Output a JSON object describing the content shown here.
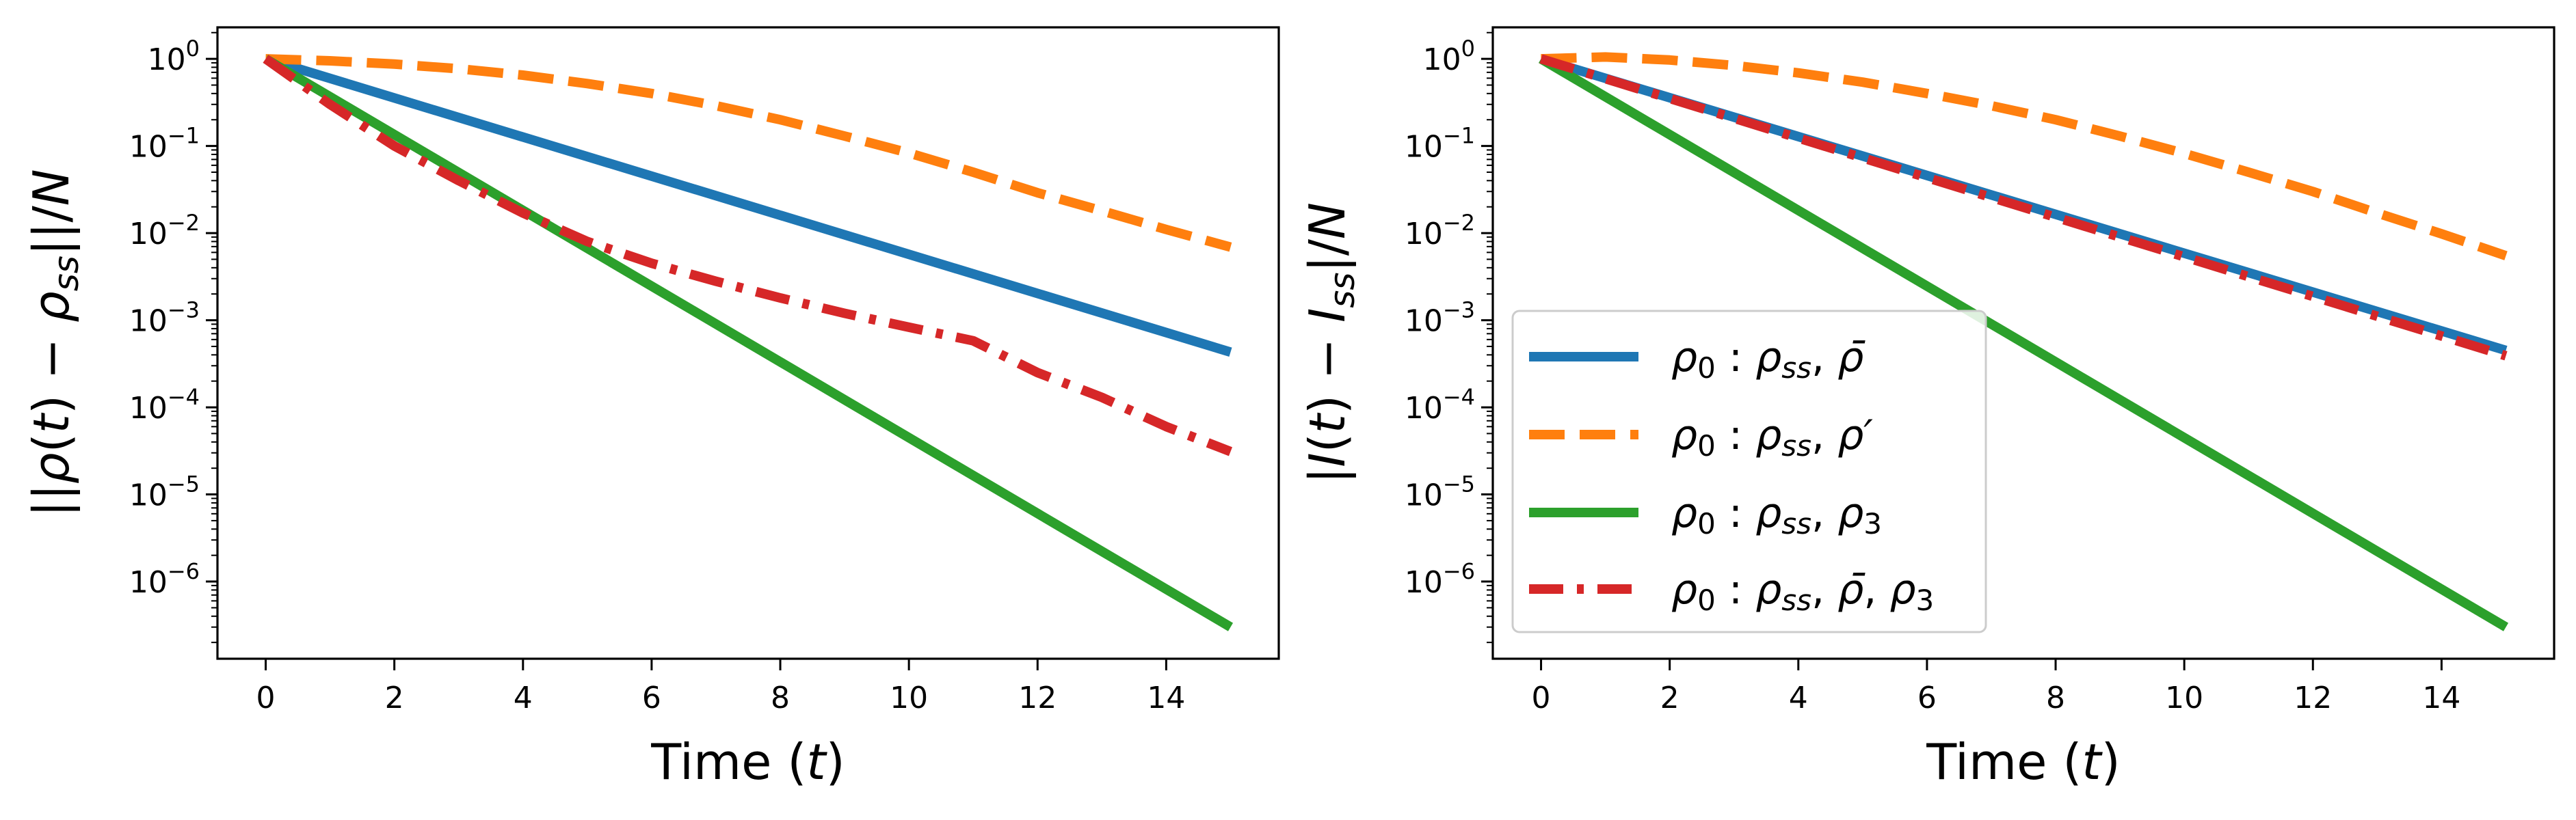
{
  "chart_data": [
    {
      "type": "line",
      "panel": "left",
      "xlabel": "Time ($t$)",
      "ylabel": "$||\\rho(t)-\\rho_{ss}||/N$",
      "yscale": "log",
      "xlim": [
        -0.75,
        15.75
      ],
      "ylim": [
        1.3e-07,
        2.3
      ],
      "xticks": [
        0,
        2,
        4,
        6,
        8,
        10,
        12,
        14
      ],
      "yticks": [
        1e-06,
        1e-05,
        0.0001,
        0.001,
        0.01,
        0.1,
        1
      ],
      "ytick_labels": [
        {
          "base": "10",
          "exp": "−6"
        },
        {
          "base": "10",
          "exp": "−5"
        },
        {
          "base": "10",
          "exp": "−4"
        },
        {
          "base": "10",
          "exp": "−3"
        },
        {
          "base": "10",
          "exp": "−2"
        },
        {
          "base": "10",
          "exp": "−1"
        },
        {
          "base": "10",
          "exp": "0"
        }
      ],
      "grid": false,
      "legend": null,
      "series": [
        {
          "color": "#1f77b4",
          "style": "solid",
          "x": [
            0,
            15
          ],
          "y": [
            1.0,
            0.00043
          ]
        },
        {
          "color": "#ff7f0e",
          "style": "dashed",
          "x": [
            0,
            1,
            2,
            3,
            4,
            5,
            6,
            7,
            8,
            9,
            10,
            11,
            12,
            13,
            14,
            15
          ],
          "y": [
            1.0,
            0.95,
            0.87,
            0.77,
            0.65,
            0.52,
            0.4,
            0.29,
            0.2,
            0.13,
            0.083,
            0.05,
            0.029,
            0.018,
            0.011,
            0.0069
          ]
        },
        {
          "color": "#2ca02c",
          "style": "solid",
          "x": [
            0,
            15
          ],
          "y": [
            1.0,
            3e-07
          ]
        },
        {
          "color": "#d62728",
          "style": "dashdot",
          "x": [
            0,
            1,
            2,
            3,
            4,
            5,
            6,
            7,
            8,
            9,
            10,
            11,
            12,
            13,
            14,
            15
          ],
          "y": [
            1.0,
            0.3,
            0.1,
            0.04,
            0.017,
            0.008,
            0.0045,
            0.0028,
            0.0018,
            0.0012,
            0.00083,
            0.00058,
            0.00025,
            0.00013,
            6e-05,
            3.1e-05
          ]
        }
      ]
    },
    {
      "type": "line",
      "panel": "right",
      "xlabel": "Time ($t$)",
      "ylabel": "$|I(t)-I_{ss}|/N$",
      "yscale": "log",
      "xlim": [
        -0.75,
        15.75
      ],
      "ylim": [
        1.3e-07,
        2.3
      ],
      "xticks": [
        0,
        2,
        4,
        6,
        8,
        10,
        12,
        14
      ],
      "yticks": [
        1e-06,
        1e-05,
        0.0001,
        0.001,
        0.01,
        0.1,
        1
      ],
      "ytick_labels": [
        {
          "base": "10",
          "exp": "−6"
        },
        {
          "base": "10",
          "exp": "−5"
        },
        {
          "base": "10",
          "exp": "−4"
        },
        {
          "base": "10",
          "exp": "−3"
        },
        {
          "base": "10",
          "exp": "−2"
        },
        {
          "base": "10",
          "exp": "−1"
        },
        {
          "base": "10",
          "exp": "0"
        }
      ],
      "grid": false,
      "legend": "center-left",
      "series": [
        {
          "name": "$\\rho_0:\\rho_{ss},\\bar{\\rho}$",
          "color": "#1f77b4",
          "style": "solid",
          "x": [
            0,
            15
          ],
          "y": [
            1.0,
            0.00045
          ]
        },
        {
          "name": "$\\rho_0:\\rho_{ss},\\rho'$",
          "color": "#ff7f0e",
          "style": "dashed",
          "x": [
            0,
            1,
            2,
            3,
            4,
            5,
            6,
            7,
            8,
            9,
            10,
            11,
            12,
            13,
            14,
            15
          ],
          "y": [
            1.0,
            1.05,
            0.97,
            0.84,
            0.69,
            0.54,
            0.4,
            0.29,
            0.2,
            0.13,
            0.082,
            0.05,
            0.03,
            0.017,
            0.0098,
            0.0055
          ]
        },
        {
          "name": "$\\rho_0:\\rho_{ss},\\rho_3$",
          "color": "#2ca02c",
          "style": "solid",
          "x": [
            0,
            15
          ],
          "y": [
            1.0,
            3e-07
          ]
        },
        {
          "name": "$\\rho_0:\\rho_{ss},\\bar{\\rho},\\rho_3$",
          "color": "#d62728",
          "style": "dashdot",
          "x": [
            0,
            15
          ],
          "y": [
            1.0,
            0.00039
          ]
        }
      ]
    }
  ]
}
